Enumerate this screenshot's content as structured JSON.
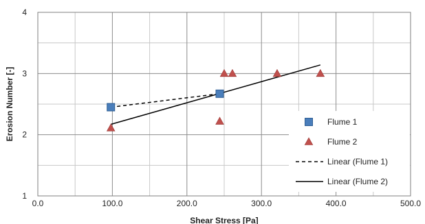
{
  "chart_data": {
    "type": "scatter",
    "xlabel": "Shear Stress [Pa]",
    "ylabel": "Erosion Number [-]",
    "xlim": [
      0,
      500
    ],
    "ylim": [
      1,
      4
    ],
    "x_major_ticks": [
      0,
      100,
      200,
      300,
      400,
      500
    ],
    "x_tick_labels": [
      "0.0",
      "100.0",
      "200.0",
      "300.0",
      "400.0",
      "500.0"
    ],
    "x_minor_gridlines": [
      50,
      150,
      250,
      350,
      450
    ],
    "y_major_ticks": [
      1,
      2,
      3,
      4
    ],
    "y_tick_labels": [
      "1",
      "2",
      "3",
      "4"
    ],
    "y_minor_gridlines": [
      1.5,
      2.5,
      3.5
    ],
    "grid": true,
    "legend_position": "right",
    "series": [
      {
        "name": "Flume 1",
        "kind": "scatter",
        "marker": "square",
        "color": "#4a7ebb",
        "x": [
          98,
          244
        ],
        "y": [
          2.45,
          2.67
        ]
      },
      {
        "name": "Flume 2",
        "kind": "scatter",
        "marker": "triangle",
        "color": "#c0504d",
        "x": [
          98,
          244,
          250,
          261,
          321,
          379
        ],
        "y": [
          2.11,
          2.22,
          3.0,
          3.0,
          3.0,
          3.0
        ]
      },
      {
        "name": "Linear (Flume 1)",
        "kind": "line",
        "dash": "dashed",
        "color": "#000000",
        "x": [
          98,
          244
        ],
        "y": [
          2.45,
          2.67
        ]
      },
      {
        "name": "Linear (Flume 2)",
        "kind": "line",
        "dash": "solid",
        "color": "#000000",
        "x": [
          98,
          379
        ],
        "y": [
          2.17,
          3.14
        ]
      }
    ]
  }
}
